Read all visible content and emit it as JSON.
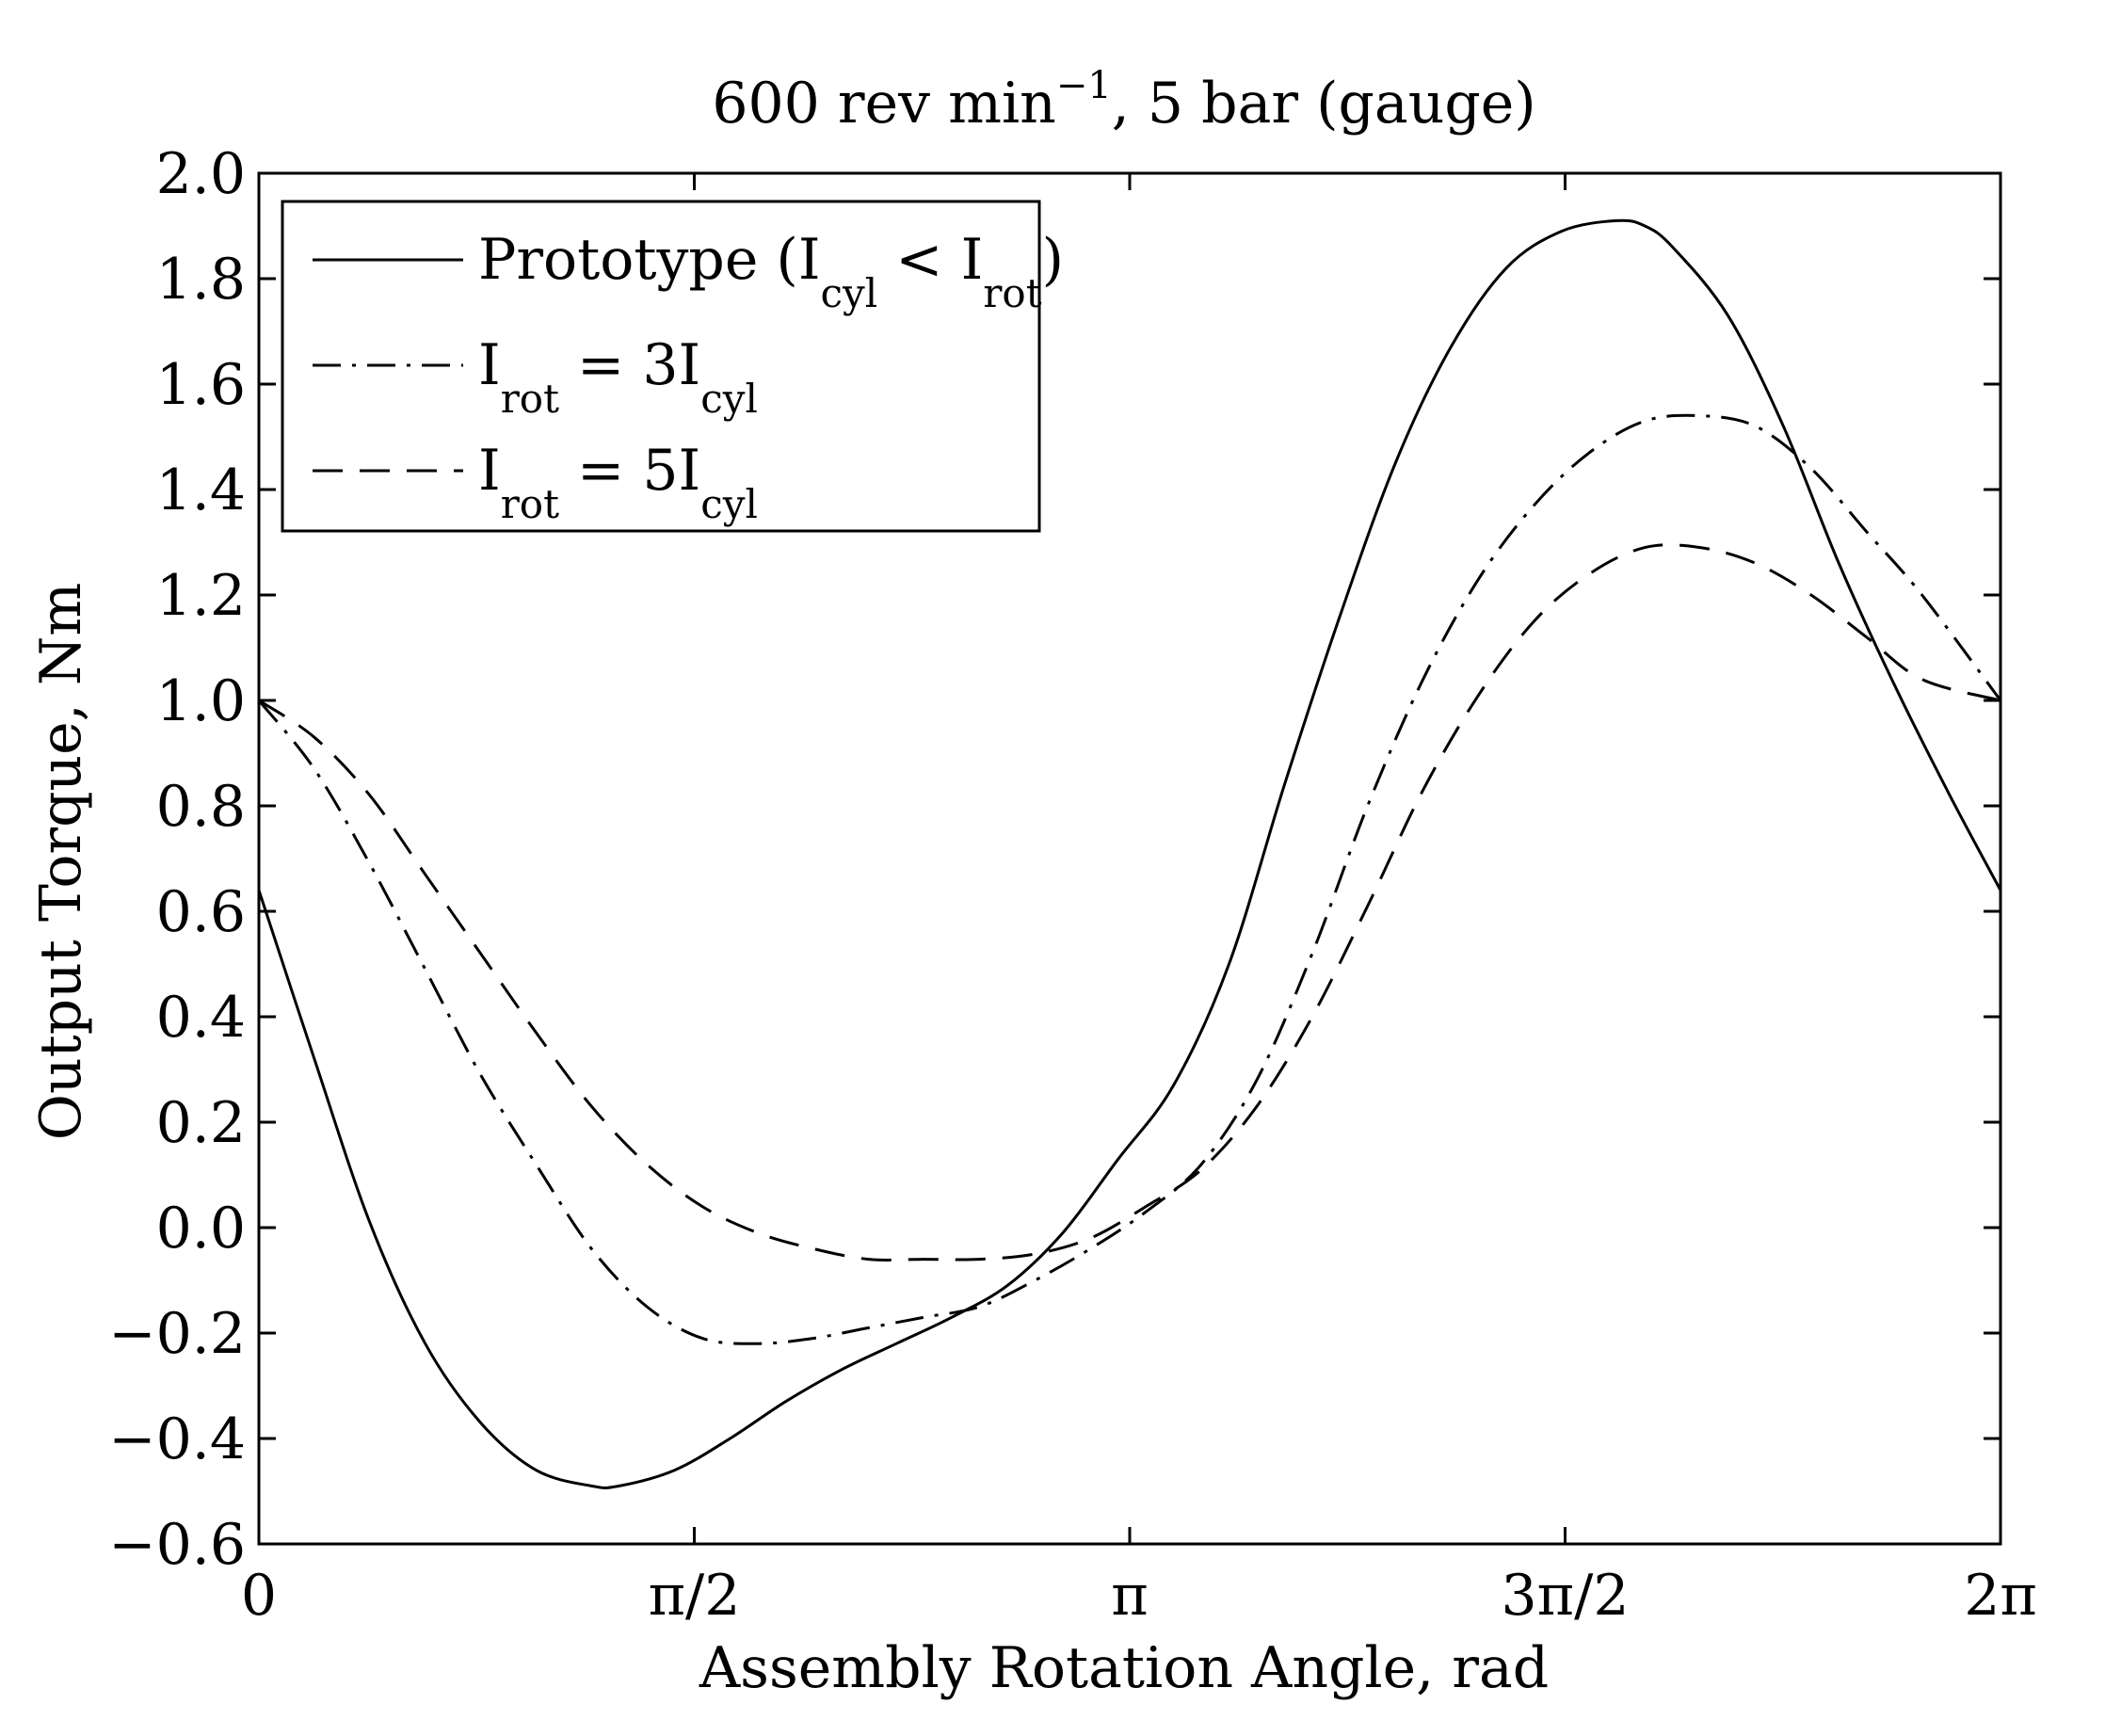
{
  "chart_data": {
    "type": "line",
    "title": {
      "base": "600 rev min",
      "superscript": "−1",
      "suffix": ", 5 bar (gauge)"
    },
    "xlabel": "Assembly Rotation Angle, rad",
    "ylabel": "Output Torque, Nm",
    "xlim": [
      0,
      6.2832
    ],
    "ylim": [
      -0.6,
      2.0
    ],
    "xticks": [
      {
        "value": 0,
        "label": "0"
      },
      {
        "value": 1.5708,
        "label": "π/2"
      },
      {
        "value": 3.1416,
        "label": "π"
      },
      {
        "value": 4.7124,
        "label": "3π/2"
      },
      {
        "value": 6.2832,
        "label": "2π"
      }
    ],
    "yticks": [
      {
        "value": -0.6,
        "label": "−0.6"
      },
      {
        "value": -0.4,
        "label": "−0.4"
      },
      {
        "value": -0.2,
        "label": "−0.2"
      },
      {
        "value": 0.0,
        "label": "0.0"
      },
      {
        "value": 0.2,
        "label": "0.2"
      },
      {
        "value": 0.4,
        "label": "0.4"
      },
      {
        "value": 0.6,
        "label": "0.6"
      },
      {
        "value": 0.8,
        "label": "0.8"
      },
      {
        "value": 1.0,
        "label": "1.0"
      },
      {
        "value": 1.2,
        "label": "1.2"
      },
      {
        "value": 1.4,
        "label": "1.4"
      },
      {
        "value": 1.6,
        "label": "1.6"
      },
      {
        "value": 1.8,
        "label": "1.8"
      },
      {
        "value": 2.0,
        "label": "2.0"
      }
    ],
    "legend_position": "top-left",
    "grid": false,
    "series": [
      {
        "name": "Prototype (I_cyl < I_rot)",
        "style": "solid",
        "legend": [
          {
            "t": "Prototype (I"
          },
          {
            "t": "cyl",
            "sub": true
          },
          {
            "t": " < I"
          },
          {
            "t": "rot",
            "sub": true
          },
          {
            "t": ")"
          }
        ],
        "x": [
          0,
          0.2,
          0.4,
          0.6,
          0.8,
          1.0,
          1.2,
          1.3,
          1.5,
          1.7,
          1.9,
          2.1,
          2.3,
          2.5,
          2.7,
          2.9,
          3.1,
          3.3,
          3.5,
          3.7,
          3.9,
          4.1,
          4.3,
          4.5,
          4.7,
          4.9,
          5.0,
          5.1,
          5.3,
          5.5,
          5.7,
          5.9,
          6.1,
          6.2832
        ],
        "y": [
          0.64,
          0.32,
          0.01,
          -0.22,
          -0.37,
          -0.46,
          -0.49,
          -0.49,
          -0.46,
          -0.4,
          -0.33,
          -0.27,
          -0.22,
          -0.17,
          -0.11,
          -0.01,
          0.13,
          0.27,
          0.5,
          0.84,
          1.16,
          1.45,
          1.67,
          1.82,
          1.89,
          1.91,
          1.9,
          1.86,
          1.73,
          1.52,
          1.26,
          1.03,
          0.82,
          0.64
        ]
      },
      {
        "name": "I_rot = 3I_cyl",
        "style": "dashdot",
        "legend": [
          {
            "t": "I"
          },
          {
            "t": "rot",
            "sub": true
          },
          {
            "t": " = 3I"
          },
          {
            "t": "cyl",
            "sub": true
          }
        ],
        "x": [
          0,
          0.2,
          0.4,
          0.6,
          0.8,
          1.0,
          1.2,
          1.4,
          1.6,
          1.8,
          2.0,
          2.2,
          2.4,
          2.6,
          2.8,
          3.0,
          3.2,
          3.4,
          3.6,
          3.8,
          4.0,
          4.2,
          4.4,
          4.6,
          4.8,
          5.0,
          5.2,
          5.4,
          5.6,
          5.8,
          6.0,
          6.2832
        ],
        "y": [
          1.0,
          0.87,
          0.69,
          0.49,
          0.29,
          0.12,
          -0.04,
          -0.15,
          -0.21,
          -0.22,
          -0.21,
          -0.19,
          -0.17,
          -0.15,
          -0.1,
          -0.04,
          0.03,
          0.12,
          0.28,
          0.52,
          0.8,
          1.04,
          1.23,
          1.37,
          1.47,
          1.53,
          1.54,
          1.52,
          1.44,
          1.32,
          1.2,
          1.0
        ]
      },
      {
        "name": "I_rot = 5I_cyl",
        "style": "dashed",
        "legend": [
          {
            "t": "I"
          },
          {
            "t": "rot",
            "sub": true
          },
          {
            "t": " = 5I"
          },
          {
            "t": "cyl",
            "sub": true
          }
        ],
        "x": [
          0,
          0.2,
          0.4,
          0.6,
          0.8,
          1.0,
          1.2,
          1.4,
          1.6,
          1.8,
          2.0,
          2.2,
          2.4,
          2.6,
          2.8,
          3.0,
          3.2,
          3.4,
          3.6,
          3.8,
          4.0,
          4.2,
          4.4,
          4.6,
          4.8,
          5.0,
          5.2,
          5.4,
          5.6,
          5.8,
          6.0,
          6.2832
        ],
        "y": [
          1.0,
          0.93,
          0.82,
          0.67,
          0.52,
          0.37,
          0.23,
          0.12,
          0.04,
          -0.01,
          -0.04,
          -0.06,
          -0.06,
          -0.06,
          -0.05,
          -0.02,
          0.04,
          0.11,
          0.23,
          0.4,
          0.61,
          0.83,
          1.01,
          1.15,
          1.24,
          1.29,
          1.29,
          1.26,
          1.2,
          1.12,
          1.04,
          1.0
        ]
      }
    ]
  }
}
